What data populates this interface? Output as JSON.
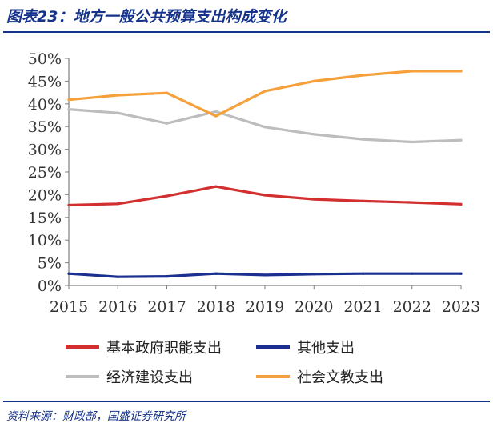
{
  "figure": {
    "title": "图表23：地方一般公共预算支出构成变化",
    "source": "资料来源：财政部，国盛证券研究所"
  },
  "colors": {
    "heading": "#16338a",
    "axis": "#7f7f7f"
  },
  "chart_data": {
    "type": "line",
    "x": [
      "2015",
      "2016",
      "2017",
      "2018",
      "2019",
      "2020",
      "2021",
      "2022",
      "2023"
    ],
    "yticks": [
      "0%",
      "5%",
      "10%",
      "15%",
      "20%",
      "25%",
      "30%",
      "35%",
      "40%",
      "45%",
      "50%"
    ],
    "ylim": [
      0,
      50
    ],
    "y_unit": "%",
    "grid": false,
    "legend_position": "bottom",
    "series": [
      {
        "name": "基本政府职能支出",
        "color": "#d32f2f",
        "values": [
          17.7,
          18.0,
          19.7,
          21.8,
          19.9,
          19.0,
          18.6,
          18.3,
          17.9
        ]
      },
      {
        "name": "其他支出",
        "color": "#1a2f8f",
        "values": [
          2.6,
          1.9,
          2.0,
          2.6,
          2.3,
          2.5,
          2.6,
          2.6,
          2.6
        ]
      },
      {
        "name": "经济建设支出",
        "color": "#bdbdbd",
        "values": [
          38.8,
          38.0,
          35.7,
          38.3,
          34.9,
          33.3,
          32.2,
          31.6,
          32.0
        ]
      },
      {
        "name": "社会文教支出",
        "color": "#f5a03a",
        "values": [
          40.9,
          41.9,
          42.4,
          37.3,
          42.8,
          45.0,
          46.3,
          47.2,
          47.2
        ]
      }
    ]
  }
}
